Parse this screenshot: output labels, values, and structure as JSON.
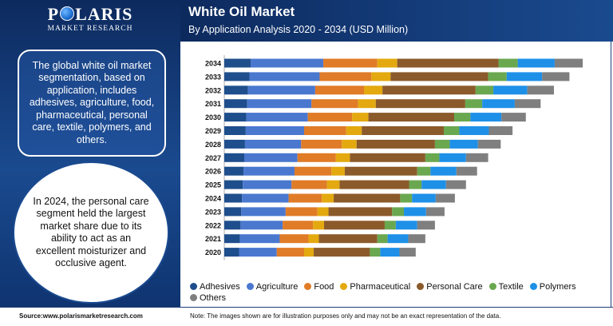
{
  "brand": {
    "logo_main_left": "P",
    "logo_main_right": "LARIS",
    "logo_sub": "MARKET RESEARCH"
  },
  "header": {
    "title": "White Oil Market",
    "subtitle": "By Application Analysis 2020 - 2034 (USD Million)"
  },
  "panel": {
    "box_text": "The global white oil market segmentation, based on application, includes adhesives, agriculture, food, pharmaceutical, personal care, textile, polymers, and others.",
    "circle_text": "In 2024, the personal care segment held the largest market share due to its ability to act as an excellent moisturizer and occlusive agent."
  },
  "footer": {
    "source": "Source:www.polarismarketresearch.com",
    "note": "Note: The images shown are for illustration purposes only and may not be an exact representation of the data."
  },
  "chart_data": {
    "type": "bar",
    "orientation": "horizontal",
    "stacked": true,
    "title": "White Oil Market",
    "subtitle": "By Application Analysis 2020 - 2034 (USD Million)",
    "grid": false,
    "legend_position": "bottom",
    "categories": [
      "2034",
      "2033",
      "2032",
      "2031",
      "2030",
      "2029",
      "2028",
      "2027",
      "2026",
      "2025",
      "2024",
      "2023",
      "2022",
      "2021",
      "2020"
    ],
    "series": [
      {
        "name": "Adhesives",
        "color": "#1f4e8c",
        "values": [
          36,
          34,
          32,
          31,
          30,
          29,
          28,
          27,
          26,
          25,
          24,
          23,
          22,
          21,
          20
        ]
      },
      {
        "name": "Agriculture",
        "color": "#4a78cf",
        "values": [
          98,
          95,
          91,
          87,
          83,
          79,
          76,
          72,
          69,
          66,
          63,
          60,
          57,
          54,
          51
        ]
      },
      {
        "name": "Food",
        "color": "#e07b27",
        "values": [
          73,
          70,
          66,
          63,
          60,
          57,
          55,
          52,
          50,
          48,
          45,
          43,
          41,
          39,
          37
        ]
      },
      {
        "name": "Pharmaceutical",
        "color": "#e3a90f",
        "values": [
          27,
          26,
          25,
          24,
          22,
          21,
          20,
          19,
          18,
          17,
          16,
          15,
          15,
          14,
          13
        ]
      },
      {
        "name": "Personal Care",
        "color": "#8b5a2b",
        "values": [
          137,
          132,
          126,
          121,
          116,
          111,
          106,
          102,
          98,
          94,
          90,
          86,
          82,
          79,
          76
        ]
      },
      {
        "name": "Textile",
        "color": "#6aa84f",
        "values": [
          26,
          25,
          24,
          23,
          22,
          21,
          20,
          19,
          18,
          17,
          16,
          16,
          15,
          14,
          14
        ]
      },
      {
        "name": "Polymers",
        "color": "#1e90e8",
        "values": [
          50,
          48,
          46,
          44,
          42,
          40,
          38,
          36,
          35,
          33,
          32,
          30,
          29,
          28,
          26
        ]
      },
      {
        "name": "Others",
        "color": "#7f7f7f",
        "values": [
          38,
          37,
          36,
          35,
          33,
          32,
          31,
          30,
          28,
          27,
          26,
          25,
          24,
          23,
          22
        ]
      }
    ]
  }
}
